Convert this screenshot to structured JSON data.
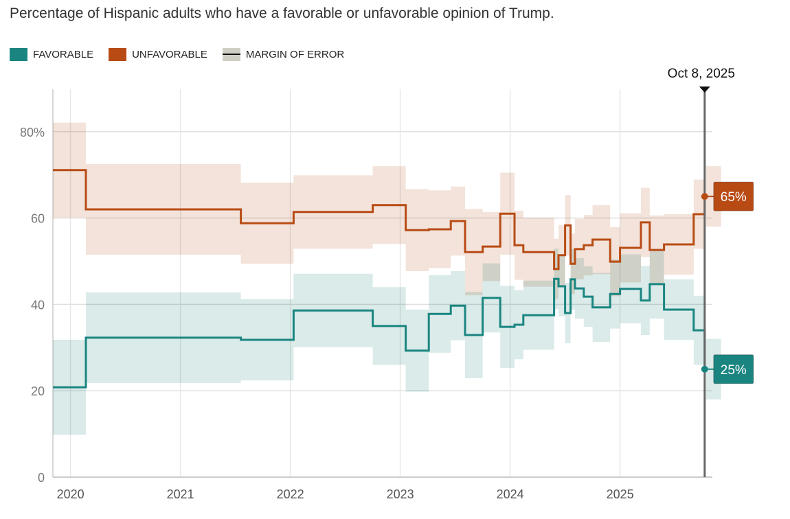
{
  "title": "Percentage of Hispanic adults who have a favorable or unfavorable opinion of Trump.",
  "legend": {
    "favorable": "FAVORABLE",
    "unfavorable": "UNFAVORABLE",
    "moe": "MARGIN OF ERROR"
  },
  "colors": {
    "favorable": "#1a8580",
    "unfavorable": "#b84b14",
    "favorable_band": "#d3e7e5",
    "unfavorable_band": "#f1ded3",
    "overlap_band": "#d0cdc3"
  },
  "chart_data": {
    "type": "line",
    "title": "Percentage of Hispanic adults who have a favorable or unfavorable opinion of Trump.",
    "xlabel": "",
    "ylabel": "",
    "xlim": [
      2019.84,
      2025.84
    ],
    "ylim": [
      0,
      90
    ],
    "y_ticks": [
      0,
      20,
      40,
      60,
      80
    ],
    "y_tick_labels": [
      "0",
      "20",
      "40",
      "60",
      "80%"
    ],
    "x_ticks": [
      2020,
      2021,
      2022,
      2023,
      2024,
      2025
    ],
    "x_tick_labels": [
      "2020",
      "2021",
      "2022",
      "2023",
      "2024",
      "2025"
    ],
    "grid": true,
    "legend_position": "top-left",
    "step_starts": [
      2019.84,
      2020.14,
      2021.55,
      2022.03,
      2022.75,
      2023.05,
      2023.26,
      2023.46,
      2023.59,
      2023.75,
      2023.91,
      2024.04,
      2024.12,
      2024.4,
      2024.44,
      2024.5,
      2024.55,
      2024.59,
      2024.67,
      2024.75,
      2024.91,
      2025.0,
      2025.19,
      2025.27,
      2025.4,
      2025.67
    ],
    "end": 2025.77,
    "series": [
      {
        "name": "UNFAVORABLE",
        "values": [
          71.1,
          62.0,
          58.8,
          61.4,
          63.0,
          57.2,
          57.4,
          59.3,
          52.1,
          53.4,
          61.0,
          53.7,
          52.1,
          48.2,
          51.4,
          58.3,
          49.4,
          52.8,
          53.7,
          55.0,
          49.9,
          53.1,
          59.0,
          52.6,
          53.9,
          60.9
        ],
        "final": 65
      },
      {
        "name": "FAVORABLE",
        "values": [
          20.8,
          32.3,
          31.8,
          38.6,
          35.0,
          29.3,
          37.8,
          39.7,
          32.9,
          41.5,
          34.8,
          35.3,
          37.5,
          45.9,
          44.2,
          38.0,
          45.8,
          43.7,
          41.8,
          39.3,
          42.4,
          43.6,
          40.9,
          44.7,
          38.8,
          34.0
        ],
        "final": 25
      }
    ],
    "margin_of_error": [
      11,
      10.5,
      9.4,
      8.5,
      9,
      9.5,
      9,
      8,
      10,
      8,
      9.5,
      8,
      8,
      7,
      7,
      7,
      7,
      7,
      7,
      8,
      8,
      8,
      8,
      8,
      7,
      8
    ],
    "final_moe": 7,
    "annotation": {
      "label": "Oct 8, 2025",
      "x": 2025.77
    },
    "end_labels": {
      "unfavorable": "65%",
      "favorable": "25%"
    }
  }
}
